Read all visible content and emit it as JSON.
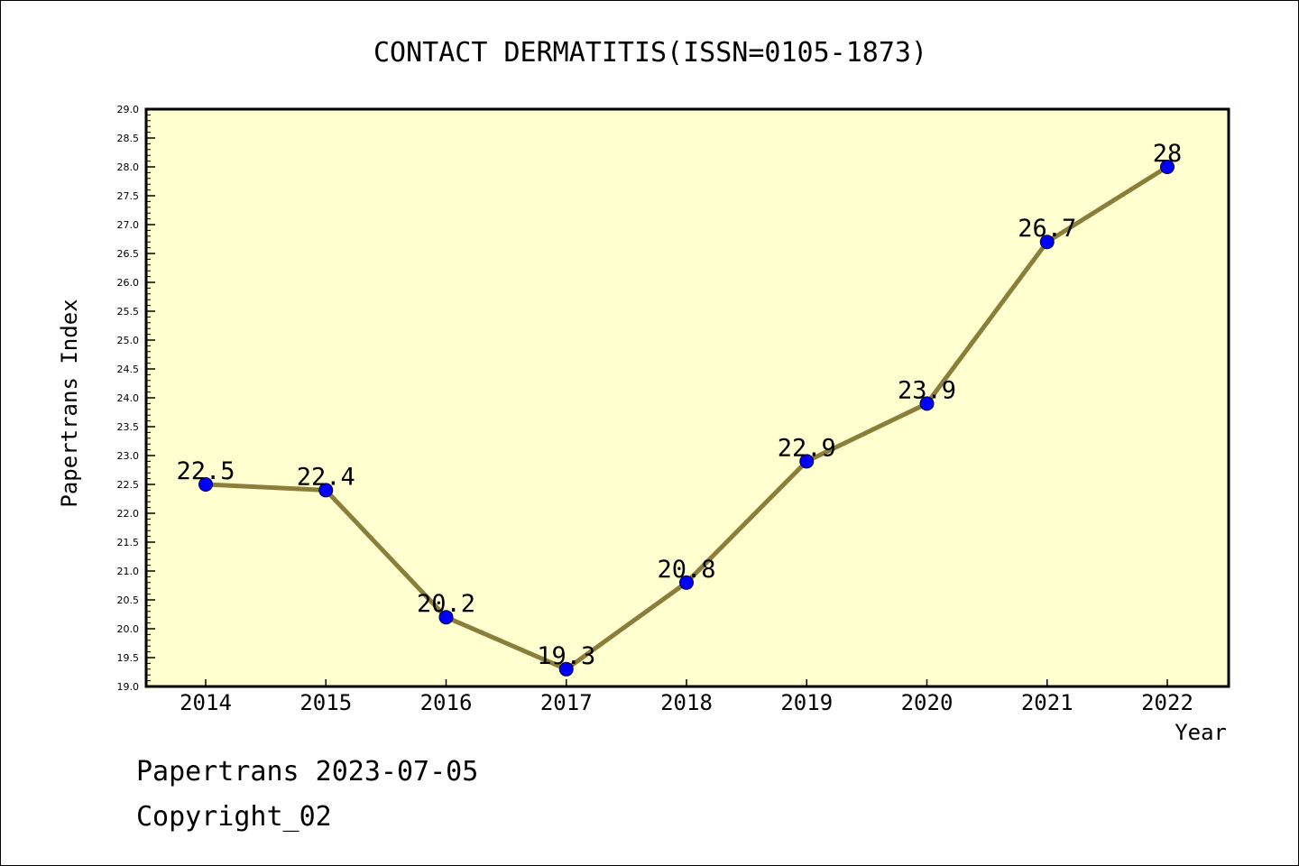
{
  "chart_data": {
    "type": "line",
    "title": "CONTACT DERMATITIS(ISSN=0105-1873)",
    "xlabel": "Year",
    "ylabel": "Papertrans Index",
    "x": [
      "2014",
      "2015",
      "2016",
      "2017",
      "2018",
      "2019",
      "2020",
      "2021",
      "2022"
    ],
    "series": [
      {
        "values": [
          22.5,
          22.4,
          20.2,
          19.3,
          20.8,
          22.9,
          23.9,
          26.7,
          28
        ],
        "labels": [
          "22.5",
          "22.4",
          "20.2",
          "19.3",
          "20.8",
          "22.9",
          "23.9",
          "26.7",
          "28"
        ]
      }
    ],
    "ylim": [
      19.0,
      29.0
    ],
    "yticks": [
      "19.0",
      "19.5",
      "20.0",
      "20.5",
      "21.0",
      "21.5",
      "22.0",
      "22.5",
      "23.0",
      "23.5",
      "24.0",
      "24.5",
      "25.0",
      "25.5",
      "26.0",
      "26.5",
      "27.0",
      "27.5",
      "28.0",
      "28.5",
      "29.0"
    ],
    "grid": false,
    "colors": {
      "plot_background": "#ffffd0",
      "line": "#8b7d3a",
      "marker": "#0000ff"
    }
  },
  "footer": {
    "line1": "Papertrans 2023-07-05",
    "line2": "Copyright_02"
  }
}
